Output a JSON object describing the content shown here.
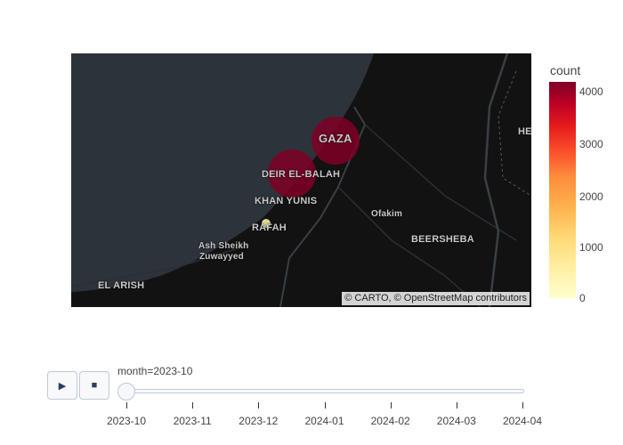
{
  "map": {
    "attribution": "© CARTO, © OpenStreetMap contributors",
    "cities": [
      {
        "name": "GAZA",
        "cls": "city big"
      },
      {
        "name": "DEIR EL-BALAH",
        "cls": "city"
      },
      {
        "name": "KHAN YUNIS",
        "cls": "city big"
      },
      {
        "name": "RAFAH",
        "cls": "city big"
      },
      {
        "name": "Ofakim",
        "cls": "city"
      },
      {
        "name": "BEERSHEBA",
        "cls": "city big"
      },
      {
        "name": "Ash Sheikh",
        "cls": "city"
      },
      {
        "name": "Zuwayyed",
        "cls": "city"
      },
      {
        "name": "EL ARISH",
        "cls": "city big"
      },
      {
        "name": "HE",
        "cls": "city big"
      }
    ],
    "points": [
      {
        "location": "GAZA",
        "count": 4200
      },
      {
        "location": "DEIR EL-BALAH",
        "count": 4100
      },
      {
        "location": "RAFAH",
        "count": 120
      }
    ],
    "colors": {
      "water": "#2d333b",
      "land": "#121212",
      "marker": "#800026"
    }
  },
  "colorbar": {
    "title": "count",
    "ticks": [
      "4000",
      "3000",
      "2000",
      "1000",
      "0"
    ]
  },
  "animation": {
    "play_icon": "▶",
    "stop_icon": "■",
    "current_label": "month=2023-10",
    "steps": [
      "2023-10",
      "2023-11",
      "2023-12",
      "2024-01",
      "2024-02",
      "2024-03",
      "2024-04"
    ]
  }
}
